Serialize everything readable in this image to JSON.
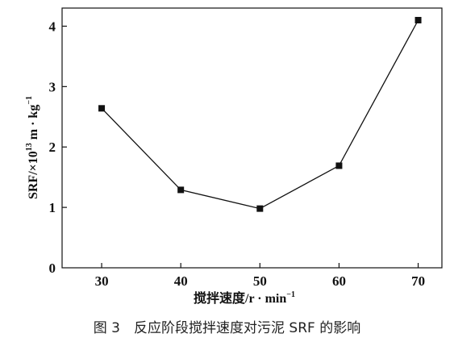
{
  "chart_data": {
    "type": "line",
    "x": [
      30,
      40,
      50,
      60,
      70
    ],
    "series": [
      {
        "values": [
          2.64,
          1.29,
          0.98,
          1.69,
          4.1
        ],
        "color": "#111111",
        "marker": "square"
      }
    ],
    "xlabel": {
      "prefix": "搅拌速度/r · min",
      "sup": "−1"
    },
    "ylabel": {
      "prefix": "SRF/×10",
      "sup1": "13",
      "mid": " m · kg",
      "sup2": "−1"
    },
    "xlim": [
      25,
      73
    ],
    "ylim": [
      0,
      4.3
    ],
    "xticks": [
      "30",
      "40",
      "50",
      "60",
      "70"
    ],
    "yticks": [
      "0",
      "1",
      "2",
      "3",
      "4"
    ],
    "grid": false
  },
  "caption": "图 3　反应阶段搅拌速度对污泥 SRF 的影响"
}
